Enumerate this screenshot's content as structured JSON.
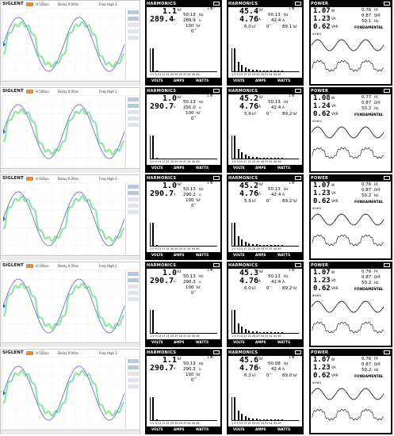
{
  "scope": {
    "logo": "SIGLENT",
    "timebase": "H 500us",
    "delay": "Delay 0.00ns",
    "trigger": "Freq High 2"
  },
  "harmonic_panel_title": "HARMONICS",
  "power_panel_title": "POWER",
  "tab_labels": [
    "VOLTS",
    "AMPS",
    "WATTS"
  ],
  "x_tick_label": "1 5 9 13 17 21 25 29 33 37 41 45 49",
  "rows": [
    {
      "v": {
        "thd": "1.1",
        "thd_unit": "%f",
        "vrms": "289.4",
        "vrms_unit": "v",
        "phase": "1 Φ",
        "freq": "50.13",
        "freq_unit": "Hz",
        "vpk": "289.9",
        "vpk_unit": "v",
        "pct": "100",
        "pct_unit": "%f",
        "deg": "0",
        "deg_unit": "°"
      },
      "a": {
        "thd": "45.4",
        "thd_unit": "%f",
        "arms": "4.76",
        "arms_unit": "A",
        "phase": "1 Φ",
        "freq": "50.13",
        "freq_unit": "Hz",
        "apk": "42.4",
        "apk_unit": "A",
        "kf": "6.0",
        "kf_unit": "kF",
        "deg": "0",
        "deg_unit": "°",
        "pk": "89.1",
        "pk_unit": "%f"
      },
      "p": {
        "kw": "1.07",
        "kw_unit": "W",
        "pf": "0.76",
        "pf_unit": "PF",
        "kva": "1.23",
        "kva_unit": "VA",
        "dpf": "0.87",
        "dpf_unit": "DPF",
        "kvar": "0.62",
        "kvar_unit": "VAR",
        "hz": "50.1",
        "hz_unit": "Hz",
        "mode": "FONDAMENTAL",
        "wave_label": "⊕V⊕A"
      }
    },
    {
      "v": {
        "thd": "1.0",
        "thd_unit": "%f",
        "vrms": "290.7",
        "vrms_unit": "v",
        "phase": "1 Φ",
        "freq": "50.13",
        "freq_unit": "Hz",
        "vpk": "291.0",
        "vpk_unit": "v",
        "pct": "100",
        "pct_unit": "%f",
        "deg": "0",
        "deg_unit": "°"
      },
      "a": {
        "thd": "45.2",
        "thd_unit": "%f",
        "arms": "4.76",
        "arms_unit": "A",
        "phase": "1 Φ",
        "freq": "50.13",
        "freq_unit": "Hz",
        "apk": "42.4",
        "apk_unit": "A",
        "kf": "5.9",
        "kf_unit": "kF",
        "deg": "0",
        "deg_unit": "°",
        "pk": "89.2",
        "pk_unit": "%f"
      },
      "p": {
        "kw": "1.08",
        "kw_unit": "W",
        "pf": "0.77",
        "pf_unit": "PF",
        "kva": "1.24",
        "kva_unit": "VA",
        "dpf": "0.87",
        "dpf_unit": "DPF",
        "kvar": "0.62",
        "kvar_unit": "VAR",
        "hz": "50.2",
        "hz_unit": "Hz",
        "mode": "FONDAMENTAL",
        "wave_label": "⊕V⊕A"
      }
    },
    {
      "v": {
        "thd": "1.0",
        "thd_unit": "%f",
        "vrms": "290.7",
        "vrms_unit": "v",
        "phase": "1 Φ",
        "freq": "50.13",
        "freq_unit": "Hz",
        "vpk": "290.2",
        "vpk_unit": "v",
        "pct": "100",
        "pct_unit": "%f",
        "deg": "0",
        "deg_unit": "°"
      },
      "a": {
        "thd": "45.2",
        "thd_unit": "%f",
        "arms": "4.76",
        "arms_unit": "A",
        "phase": "1 Φ",
        "freq": "50.13",
        "freq_unit": "Hz",
        "apk": "42.4",
        "apk_unit": "A",
        "kf": "5.9",
        "kf_unit": "kF",
        "deg": "0",
        "deg_unit": "°",
        "pk": "89.2",
        "pk_unit": "%f"
      },
      "p": {
        "kw": "1.07",
        "kw_unit": "W",
        "pf": "0.76",
        "pf_unit": "PF",
        "kva": "1.23",
        "kva_unit": "VA",
        "dpf": "0.87",
        "dpf_unit": "DPF",
        "kvar": "0.62",
        "kvar_unit": "VAR",
        "hz": "50.2",
        "hz_unit": "Hz",
        "mode": "FONDAMENTAL",
        "wave_label": "⊕V⊕A"
      }
    },
    {
      "v": {
        "thd": "1.0",
        "thd_unit": "%f",
        "vrms": "290.7",
        "vrms_unit": "v",
        "phase": "1 Φ",
        "freq": "50.13",
        "freq_unit": "Hz",
        "vpk": "290.3",
        "vpk_unit": "v",
        "pct": "100",
        "pct_unit": "%f",
        "deg": "0",
        "deg_unit": "°"
      },
      "a": {
        "thd": "45.3",
        "thd_unit": "%f",
        "arms": "4.76",
        "arms_unit": "A",
        "phase": "1 Φ",
        "freq": "50.13",
        "freq_unit": "Hz",
        "apk": "42.4",
        "apk_unit": "A",
        "kf": "6.0",
        "kf_unit": "kF",
        "deg": "0",
        "deg_unit": "°",
        "pk": "89.2",
        "pk_unit": "%f"
      },
      "p": {
        "kw": "1.07",
        "kw_unit": "W",
        "pf": "0.76",
        "pf_unit": "PF",
        "kva": "1.23",
        "kva_unit": "VA",
        "dpf": "0.87",
        "dpf_unit": "DPF",
        "kvar": "0.62",
        "kvar_unit": "VAR",
        "hz": "50.2",
        "hz_unit": "Hz",
        "mode": "FONDAMENTAL",
        "wave_label": "⊕V⊕A"
      }
    },
    {
      "v": {
        "thd": "1.1",
        "thd_unit": "%f",
        "vrms": "290.7",
        "vrms_unit": "v",
        "phase": "1 Φ",
        "freq": "50.13",
        "freq_unit": "Hz",
        "vpk": "290.3",
        "vpk_unit": "v",
        "pct": "100",
        "pct_unit": "%f",
        "deg": "0",
        "deg_unit": "°"
      },
      "a": {
        "thd": "45.6",
        "thd_unit": "%f",
        "arms": "4.76",
        "arms_unit": "A",
        "phase": "1 Φ",
        "freq": "50.08",
        "freq_unit": "Hz",
        "apk": "42.4",
        "apk_unit": "A",
        "kf": "6.2",
        "kf_unit": "kF",
        "deg": "0",
        "deg_unit": "°",
        "pk": "89.0",
        "pk_unit": "%f"
      },
      "p": {
        "kw": "1.07",
        "kw_unit": "W",
        "pf": "0.76",
        "pf_unit": "PF",
        "kva": "1.23",
        "kva_unit": "VA",
        "dpf": "0.87",
        "dpf_unit": "DPF",
        "kvar": "0.62",
        "kvar_unit": "VAR",
        "hz": "50.2",
        "hz_unit": "Hz",
        "mode": "FONDAMENTAL",
        "wave_label": "⊕V⊕A"
      }
    }
  ],
  "colors": {
    "voltage_trace": "#6f6fe0",
    "current_trace": "#7fe08f",
    "scope_run": "#f08a2a"
  }
}
